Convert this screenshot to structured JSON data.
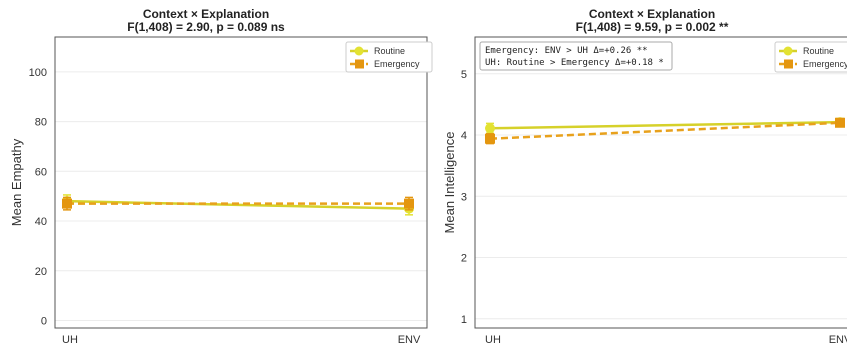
{
  "colors": {
    "routine": "#d6d12a",
    "routine_marker": "#e3e232",
    "emergency": "#e8a11c",
    "emergency_marker": "#e4960f",
    "frame": "#555555",
    "grid": "#ececec"
  },
  "chart_data": [
    {
      "type": "line",
      "title": "Context × Explanation",
      "subtitle": "F(1,408) = 2.90, p = 0.089 ns",
      "ylabel": "Mean Empathy",
      "xlabel": "",
      "categories": [
        "UH",
        "ENV"
      ],
      "ylim": [
        -3,
        114
      ],
      "yticks": [
        0,
        20,
        40,
        60,
        80,
        100
      ],
      "grid": true,
      "legend": "top-right",
      "series": [
        {
          "name": "Routine",
          "values": [
            48.0,
            45.0
          ],
          "err": [
            2.5,
            2.5
          ],
          "style": "solid",
          "marker": "circle"
        },
        {
          "name": "Emergency",
          "values": [
            47.0,
            47.0
          ],
          "err": [
            2.5,
            2.5
          ],
          "style": "dashed",
          "marker": "square"
        }
      ]
    },
    {
      "type": "line",
      "title": "Context × Explanation",
      "subtitle": "F(1,408) = 9.59, p = 0.002 **",
      "ylabel": "Mean Intelligence",
      "xlabel": "",
      "categories": [
        "UH",
        "ENV"
      ],
      "ylim": [
        0.85,
        5.6
      ],
      "yticks": [
        1,
        2,
        3,
        4,
        5
      ],
      "grid": true,
      "legend": "top-right",
      "annotation": [
        "Emergency: ENV > UH Δ=+0.26 **",
        "UH: Routine > Emergency Δ=+0.18 *"
      ],
      "series": [
        {
          "name": "Routine",
          "values": [
            4.11,
            4.21
          ],
          "err": [
            0.08,
            0.06
          ],
          "style": "solid",
          "marker": "circle"
        },
        {
          "name": "Emergency",
          "values": [
            3.94,
            4.2
          ],
          "err": [
            0.08,
            0.06
          ],
          "style": "dashed",
          "marker": "square"
        }
      ]
    }
  ]
}
